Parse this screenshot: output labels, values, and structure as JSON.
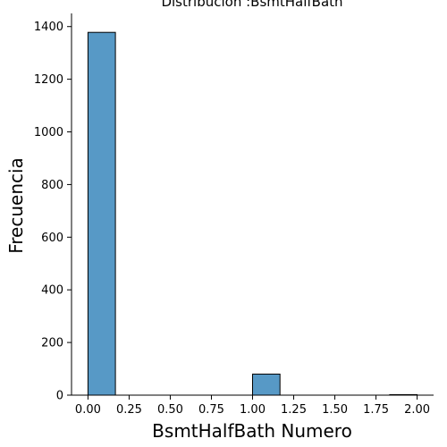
{
  "chart_data": {
    "type": "bar",
    "title": "Distribución :BsmtHalfBath",
    "xlabel": "BsmtHalfBath Numero",
    "ylabel": "Frecuencia",
    "xlim": [
      -0.1,
      2.1
    ],
    "ylim": [
      0,
      1450
    ],
    "xticks": [
      0.0,
      0.25,
      0.5,
      0.75,
      1.0,
      1.25,
      1.5,
      1.75,
      2.0
    ],
    "xtick_labels": [
      "0.00",
      "0.25",
      "0.50",
      "0.75",
      "1.00",
      "1.25",
      "1.50",
      "1.75",
      "2.00"
    ],
    "yticks": [
      0,
      200,
      400,
      600,
      800,
      1000,
      1200,
      1400
    ],
    "ytick_labels": [
      "0",
      "200",
      "400",
      "600",
      "800",
      "1000",
      "1200",
      "1400"
    ],
    "bins": [
      {
        "x0": 0.0,
        "x1": 0.1667,
        "count": 1378
      },
      {
        "x0": 0.1667,
        "x1": 0.3333,
        "count": 0
      },
      {
        "x0": 0.3333,
        "x1": 0.5,
        "count": 0
      },
      {
        "x0": 0.5,
        "x1": 0.6667,
        "count": 0
      },
      {
        "x0": 0.6667,
        "x1": 0.8333,
        "count": 0
      },
      {
        "x0": 0.8333,
        "x1": 1.0,
        "count": 0
      },
      {
        "x0": 1.0,
        "x1": 1.1667,
        "count": 80
      },
      {
        "x0": 1.1667,
        "x1": 1.3333,
        "count": 0
      },
      {
        "x0": 1.3333,
        "x1": 1.5,
        "count": 0
      },
      {
        "x0": 1.5,
        "x1": 1.6667,
        "count": 0
      },
      {
        "x0": 1.6667,
        "x1": 1.8333,
        "count": 0
      },
      {
        "x0": 1.8333,
        "x1": 2.0,
        "count": 2
      }
    ],
    "bar_color": "#5799c6",
    "edge_color": "#000000",
    "grid": false,
    "spines": [
      "left",
      "bottom"
    ]
  }
}
